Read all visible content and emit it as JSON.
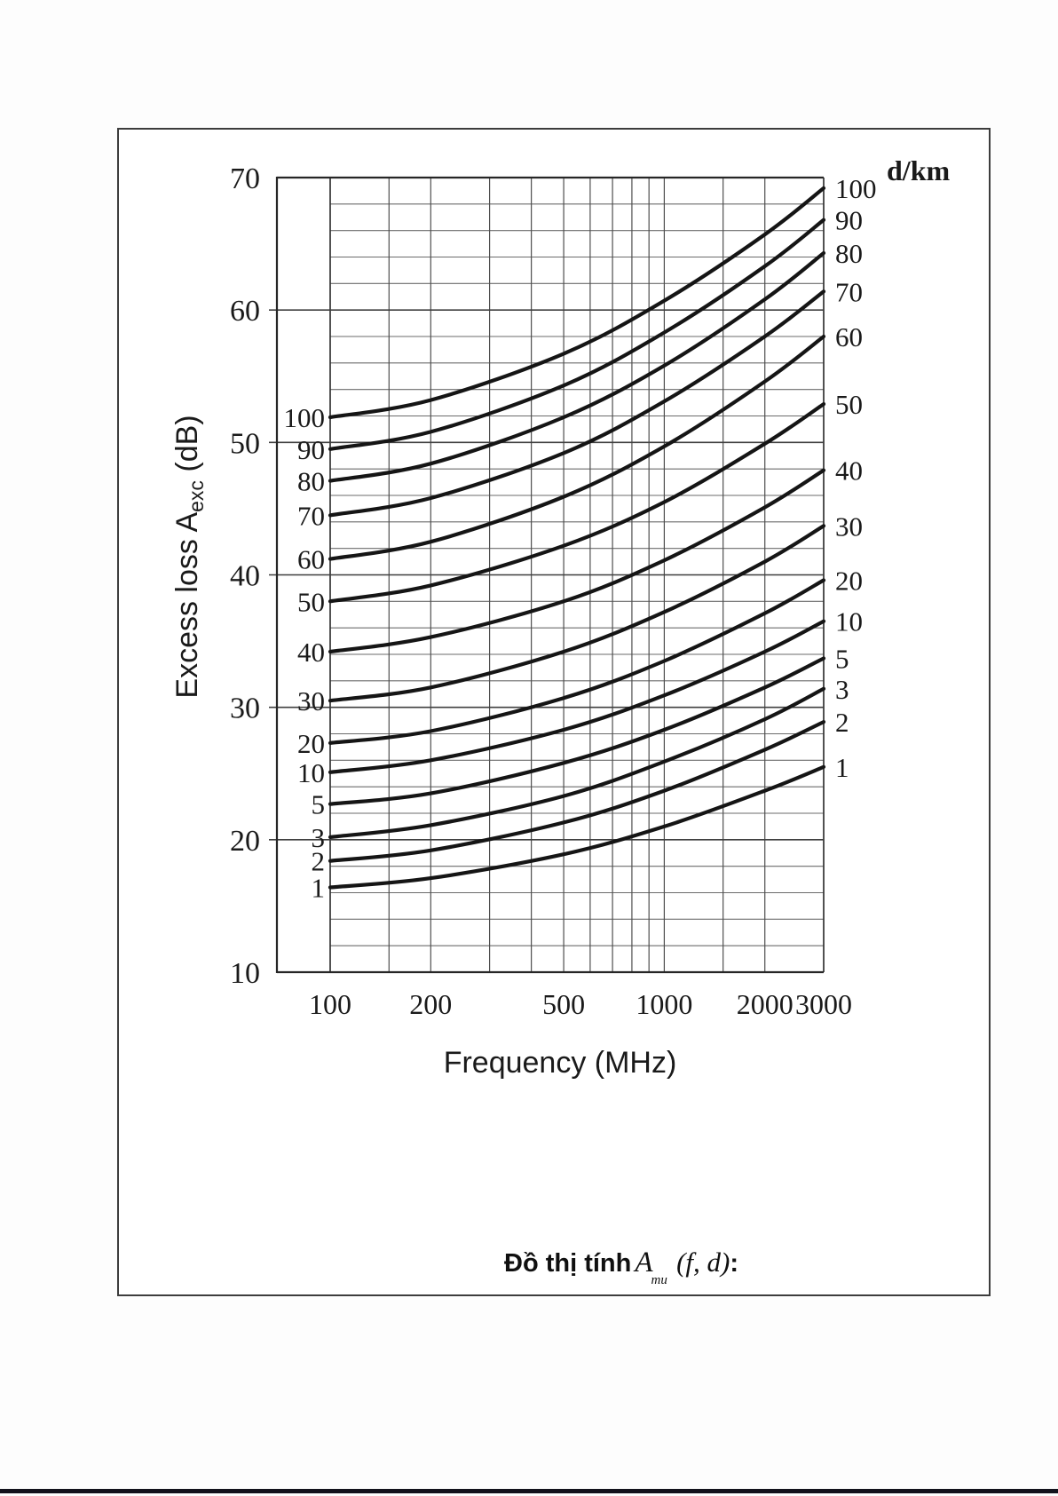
{
  "figure": {
    "caption": {
      "prefix": "Đồ thị tính",
      "symbol": "A",
      "symbol_sub": "mu",
      "args": "(f, d)",
      "suffix": ":"
    }
  },
  "chart_data": {
    "type": "line",
    "title": "",
    "xlabel": "Frequency (MHz)",
    "ylabel": "Excess loss A_exc (dB)",
    "ylabel_parts": {
      "pre": "Excess loss A",
      "sub": "exc",
      "post": " (dB)"
    },
    "legend_label": "d/km",
    "x_scale": "log",
    "xlim": [
      100,
      3000
    ],
    "ylim": [
      10,
      70
    ],
    "x_ticks": [
      100,
      200,
      500,
      1000,
      2000,
      3000
    ],
    "y_ticks": [
      10,
      20,
      30,
      40,
      50,
      60,
      70
    ],
    "y_minor_step": 2,
    "x_gridlines": [
      100,
      150,
      200,
      300,
      400,
      500,
      600,
      700,
      800,
      900,
      1000,
      1500,
      2000,
      3000
    ],
    "grid": true,
    "legend_position": "right",
    "x": [
      100,
      200,
      500,
      1000,
      2000,
      3000
    ],
    "series": [
      {
        "label": "1",
        "d": 1,
        "values": [
          16.4,
          17.1,
          18.9,
          21.0,
          23.7,
          25.5
        ]
      },
      {
        "label": "2",
        "d": 2,
        "values": [
          18.4,
          19.2,
          21.3,
          23.7,
          26.8,
          28.9
        ]
      },
      {
        "label": "3",
        "d": 3,
        "values": [
          20.2,
          21.1,
          23.3,
          25.9,
          29.1,
          31.4
        ]
      },
      {
        "label": "5",
        "d": 5,
        "values": [
          22.7,
          23.5,
          25.8,
          28.3,
          31.5,
          33.7
        ]
      },
      {
        "label": "10",
        "d": 10,
        "values": [
          25.1,
          26.0,
          28.3,
          30.9,
          34.2,
          36.5
        ]
      },
      {
        "label": "20",
        "d": 20,
        "values": [
          27.3,
          28.2,
          30.7,
          33.5,
          37.1,
          39.6
        ]
      },
      {
        "label": "30",
        "d": 30,
        "values": [
          30.5,
          31.5,
          34.2,
          37.2,
          41.0,
          43.7
        ]
      },
      {
        "label": "40",
        "d": 40,
        "values": [
          34.2,
          35.3,
          38.0,
          41.1,
          45.1,
          47.9
        ]
      },
      {
        "label": "50",
        "d": 50,
        "values": [
          38.0,
          39.2,
          42.2,
          45.5,
          49.9,
          52.9
        ]
      },
      {
        "label": "60",
        "d": 60,
        "values": [
          41.2,
          42.5,
          45.9,
          49.7,
          54.6,
          58.0
        ]
      },
      {
        "label": "70",
        "d": 70,
        "values": [
          44.5,
          45.8,
          49.2,
          53.1,
          58.0,
          61.4
        ]
      },
      {
        "label": "80",
        "d": 80,
        "values": [
          47.1,
          48.4,
          51.9,
          55.8,
          60.8,
          64.3
        ]
      },
      {
        "label": "90",
        "d": 90,
        "values": [
          49.5,
          50.8,
          54.3,
          58.3,
          63.3,
          66.8
        ]
      },
      {
        "label": "100",
        "d": 100,
        "values": [
          51.9,
          53.2,
          56.7,
          60.7,
          65.7,
          69.2
        ]
      }
    ],
    "colors": {
      "curve": "#151515",
      "grid_minor": "#6b6b6b",
      "grid_major": "#3f3f3f",
      "axis": "#262626",
      "text": "#1a1a1a"
    }
  }
}
